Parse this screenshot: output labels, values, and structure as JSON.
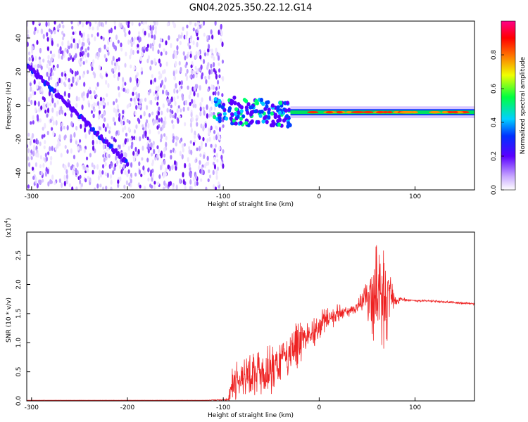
{
  "title": "GN04.2025.350.22.12.G14",
  "chart_data": [
    {
      "type": "heatmap",
      "name": "spectrogram",
      "xlabel": "Height of straight line (km)",
      "ylabel": "Frequency (Hz)",
      "xlim": [
        -305,
        162
      ],
      "ylim": [
        -50,
        50
      ],
      "xticks": [
        -300,
        -200,
        -100,
        0,
        100
      ],
      "yticks": [
        40,
        20,
        0,
        -20,
        -40
      ],
      "colorbar": {
        "label": "Normalized spectral amplitude",
        "range": [
          0,
          1
        ],
        "ticks": [
          "0.8",
          "0.6",
          "0.4",
          "0.2",
          "0.0"
        ],
        "colors": [
          "#e8e0ff",
          "#7a00ff",
          "#0000ff",
          "#00c8ff",
          "#00ff60",
          "#ffff00",
          "#ff8000",
          "#ff0000",
          "#ff0090"
        ]
      },
      "features": {
        "noise_region_x": [
          -305,
          -100
        ],
        "chirp_line": {
          "x": [
            -305,
            -200
          ],
          "y": [
            24,
            -34
          ]
        },
        "steady_tone": {
          "x_start": -30,
          "x_end": 162,
          "frequency": -4
        },
        "transition_x": [
          -110,
          -30
        ],
        "transition_y": [
          -10,
          6
        ]
      }
    },
    {
      "type": "line",
      "name": "snr",
      "xlabel": "Height of straight line (km)",
      "ylabel": "SNR (10 * v/v)",
      "scale_label": "(x10",
      "scale_exp": "4",
      "scale_close": ")",
      "xlim": [
        -305,
        162
      ],
      "ylim": [
        0,
        2.9
      ],
      "xticks": [
        -300,
        -200,
        -100,
        0,
        100
      ],
      "yticks": [
        "0.0",
        "0.5",
        "1.0",
        "1.5",
        "2.0",
        "2.5"
      ],
      "color": "#ee2222",
      "series": [
        {
          "name": "SNR envelope",
          "x": [
            -305,
            -120,
            -95,
            -90,
            -80,
            -70,
            -60,
            -50,
            -40,
            -30,
            -20,
            -10,
            0,
            10,
            20,
            30,
            40,
            45,
            50,
            55,
            60,
            65,
            70,
            75,
            80,
            85,
            90,
            100,
            110,
            120,
            130,
            140,
            150,
            162
          ],
          "y": [
            0.01,
            0.01,
            0.02,
            0.35,
            0.42,
            0.45,
            0.5,
            0.55,
            0.7,
            0.8,
            1.0,
            1.1,
            1.3,
            1.4,
            1.5,
            1.55,
            1.62,
            1.72,
            1.78,
            1.75,
            1.85,
            1.78,
            1.7,
            1.78,
            1.72,
            1.75,
            1.74,
            1.72,
            1.72,
            1.71,
            1.7,
            1.69,
            1.68,
            1.67
          ],
          "noise_amplitude": [
            0.002,
            0.002,
            0.02,
            0.35,
            0.35,
            0.4,
            0.45,
            0.45,
            0.35,
            0.45,
            0.4,
            0.3,
            0.25,
            0.22,
            0.18,
            0.12,
            0.1,
            0.18,
            0.45,
            0.8,
            1.0,
            0.95,
            0.8,
            0.35,
            0.1,
            0.06,
            0.03,
            0.02,
            0.02,
            0.02,
            0.02,
            0.02,
            0.02,
            0.02
          ]
        }
      ]
    }
  ]
}
